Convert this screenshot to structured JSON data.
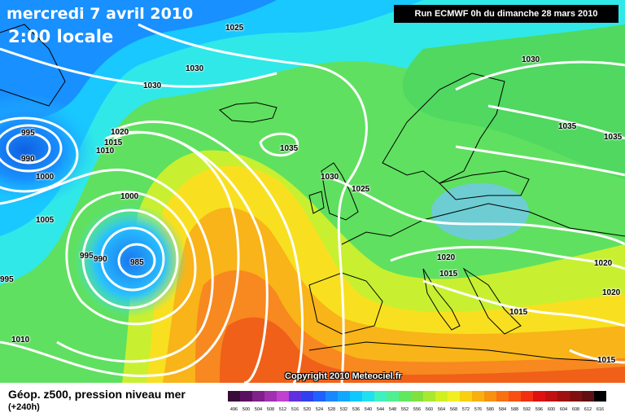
{
  "header": {
    "date": "mercredi 7 avril 2010",
    "local_time": "2:00 locale",
    "run": "Run ECMWF 0h du dimanche 28 mars 2010"
  },
  "footer": {
    "caption": "Géop. z500, pression niveau mer",
    "horizon": "(+240h)",
    "copyright": "Copyright 2010 Meteociel.fr"
  },
  "legend": {
    "values": [
      "496",
      "500",
      "504",
      "508",
      "512",
      "516",
      "520",
      "524",
      "528",
      "532",
      "536",
      "540",
      "544",
      "548",
      "552",
      "556",
      "560",
      "564",
      "568",
      "572",
      "576",
      "580",
      "584",
      "588",
      "592",
      "596",
      "600",
      "604",
      "608",
      "612",
      "616"
    ],
    "colors": [
      "#3a0a3a",
      "#5a1060",
      "#80208a",
      "#a030b0",
      "#c040d0",
      "#6030e0",
      "#3040f0",
      "#2060ff",
      "#1888ff",
      "#10a8ff",
      "#10c8ff",
      "#20e0f0",
      "#40f0c0",
      "#50f090",
      "#60e860",
      "#80e040",
      "#a8e830",
      "#d0f020",
      "#f0f020",
      "#f8d010",
      "#f8b010",
      "#f89010",
      "#f87010",
      "#f85010",
      "#f03010",
      "#e01010",
      "#c01010",
      "#a01010",
      "#801010",
      "#601010",
      "#000000"
    ]
  },
  "isobars": [
    {
      "text": "1025",
      "kind": "pressure"
    },
    {
      "text": "1030",
      "kind": "pressure"
    },
    {
      "text": "1030",
      "kind": "pressure"
    },
    {
      "text": "1030",
      "kind": "pressure"
    },
    {
      "text": "995",
      "kind": "pressure"
    },
    {
      "text": "990",
      "kind": "pressure"
    },
    {
      "text": "1000",
      "kind": "pressure"
    },
    {
      "text": "1020",
      "kind": "pressure"
    },
    {
      "text": "1015",
      "kind": "pressure"
    },
    {
      "text": "1010",
      "kind": "pressure"
    },
    {
      "text": "1035",
      "kind": "pressure"
    },
    {
      "text": "1035",
      "kind": "pressure"
    },
    {
      "text": "1035",
      "kind": "pressure"
    },
    {
      "text": "1030",
      "kind": "pressure"
    },
    {
      "text": "1025",
      "kind": "pressure"
    },
    {
      "text": "1000",
      "kind": "pressure"
    },
    {
      "text": "1005",
      "kind": "pressure"
    },
    {
      "text": "995",
      "kind": "pressure"
    },
    {
      "text": "990",
      "kind": "pressure"
    },
    {
      "text": "985",
      "kind": "pressure"
    },
    {
      "text": "995",
      "kind": "pressure"
    },
    {
      "text": "1020",
      "kind": "pressure"
    },
    {
      "text": "1015",
      "kind": "pressure"
    },
    {
      "text": "1020",
      "kind": "pressure"
    },
    {
      "text": "1020",
      "kind": "pressure"
    },
    {
      "text": "1015",
      "kind": "pressure"
    },
    {
      "text": "1010",
      "kind": "pressure"
    },
    {
      "text": "1015",
      "kind": "pressure"
    }
  ]
}
